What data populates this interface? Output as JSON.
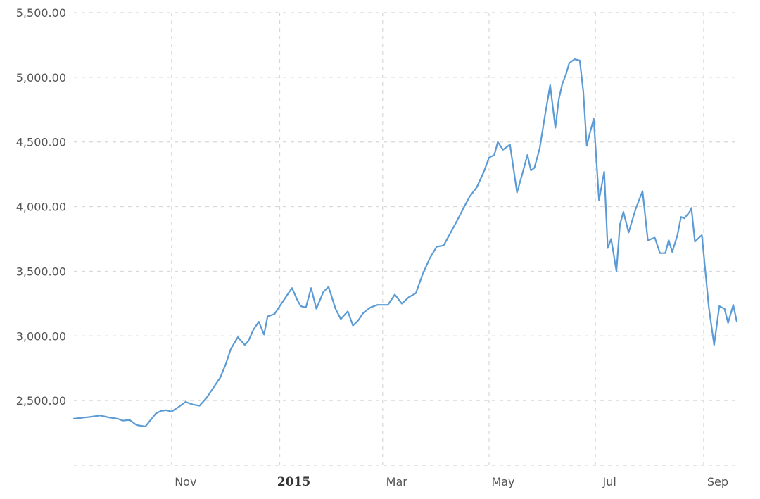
{
  "chart_data": {
    "type": "line",
    "title": "",
    "xlabel": "",
    "ylabel": "",
    "grid": true,
    "legend": "none",
    "ylim": [
      2000,
      5500
    ],
    "y_ticks": [
      2500,
      3000,
      3500,
      4000,
      4500,
      5000,
      5500
    ],
    "y_tick_labels": [
      "2,500.00",
      "3,000.00",
      "3,500.00",
      "4,000.00",
      "4,500.00",
      "5,000.00",
      "5,500.00"
    ],
    "xlim": [
      "2014-09-05",
      "2015-09-20"
    ],
    "x_ticks": [
      "2014-10-31",
      "2015-01-01",
      "2015-03-01",
      "2015-05-01",
      "2015-07-01",
      "2015-09-01"
    ],
    "x_tick_labels": [
      {
        "text": "Nov",
        "bold": false
      },
      {
        "text": "2015",
        "bold": true
      },
      {
        "text": "Mar",
        "bold": false
      },
      {
        "text": "May",
        "bold": false
      },
      {
        "text": "Jul",
        "bold": false
      },
      {
        "text": "Sep",
        "bold": false
      }
    ],
    "colors": {
      "line": "#5b9bd5",
      "grid": "#d8d8d8"
    },
    "series": [
      {
        "x": [
          "2014-09-05",
          "2014-09-15",
          "2014-09-20",
          "2014-09-25",
          "2014-09-30",
          "2014-10-03",
          "2014-10-07",
          "2014-10-11",
          "2014-10-16",
          "2014-10-22",
          "2014-10-25",
          "2014-10-28",
          "2014-10-31",
          "2014-11-04",
          "2014-11-08",
          "2014-11-12",
          "2014-11-16",
          "2014-11-20",
          "2014-11-24",
          "2014-11-28",
          "2014-12-01",
          "2014-12-04",
          "2014-12-08",
          "2014-12-12",
          "2014-12-14",
          "2014-12-17",
          "2014-12-20",
          "2014-12-23",
          "2014-12-25",
          "2014-12-29",
          "2015-01-01",
          "2015-01-05",
          "2015-01-08",
          "2015-01-11",
          "2015-01-13",
          "2015-01-16",
          "2015-01-19",
          "2015-01-22",
          "2015-01-26",
          "2015-01-29",
          "2015-02-02",
          "2015-02-05",
          "2015-02-09",
          "2015-02-12",
          "2015-02-15",
          "2015-02-18",
          "2015-02-22",
          "2015-02-26",
          "2015-03-01",
          "2015-03-04",
          "2015-03-08",
          "2015-03-12",
          "2015-03-16",
          "2015-03-20",
          "2015-03-24",
          "2015-03-28",
          "2015-04-01",
          "2015-04-05",
          "2015-04-09",
          "2015-04-13",
          "2015-04-16",
          "2015-04-20",
          "2015-04-24",
          "2015-04-28",
          "2015-05-01",
          "2015-05-04",
          "2015-05-06",
          "2015-05-09",
          "2015-05-13",
          "2015-05-17",
          "2015-05-20",
          "2015-05-23",
          "2015-05-25",
          "2015-05-27",
          "2015-05-30",
          "2015-06-02",
          "2015-06-05",
          "2015-06-08",
          "2015-06-10",
          "2015-06-12",
          "2015-06-14",
          "2015-06-16",
          "2015-06-19",
          "2015-06-22",
          "2015-06-24",
          "2015-06-26",
          "2015-06-28",
          "2015-06-30",
          "2015-07-03",
          "2015-07-06",
          "2015-07-08",
          "2015-07-10",
          "2015-07-13",
          "2015-07-15",
          "2015-07-17",
          "2015-07-20",
          "2015-07-24",
          "2015-07-28",
          "2015-07-31",
          "2015-08-04",
          "2015-08-07",
          "2015-08-10",
          "2015-08-12",
          "2015-08-14",
          "2015-08-17",
          "2015-08-19",
          "2015-08-21",
          "2015-08-24",
          "2015-08-25",
          "2015-08-27",
          "2015-08-31",
          "2015-09-04",
          "2015-09-07",
          "2015-09-10",
          "2015-09-13",
          "2015-09-15",
          "2015-09-18",
          "2015-09-20"
        ],
        "values": [
          2360,
          2375,
          2385,
          2370,
          2360,
          2345,
          2350,
          2310,
          2300,
          2400,
          2420,
          2425,
          2415,
          2450,
          2490,
          2470,
          2460,
          2520,
          2600,
          2680,
          2780,
          2900,
          2990,
          2930,
          2960,
          3050,
          3110,
          3010,
          3150,
          3170,
          3230,
          3310,
          3370,
          3280,
          3230,
          3220,
          3370,
          3210,
          3340,
          3380,
          3210,
          3130,
          3190,
          3080,
          3120,
          3180,
          3220,
          3240,
          3240,
          3240,
          3320,
          3250,
          3300,
          3330,
          3480,
          3600,
          3690,
          3700,
          3800,
          3900,
          3980,
          4080,
          4150,
          4270,
          4380,
          4400,
          4500,
          4440,
          4480,
          4110,
          4250,
          4400,
          4280,
          4300,
          4450,
          4700,
          4940,
          4610,
          4830,
          4950,
          5020,
          5110,
          5140,
          5130,
          4890,
          4470,
          4580,
          4680,
          4050,
          4270,
          3680,
          3750,
          3500,
          3860,
          3960,
          3800,
          3980,
          4120,
          3740,
          3760,
          3640,
          3640,
          3740,
          3650,
          3780,
          3920,
          3910,
          3960,
          3990,
          3730,
          3780,
          3220,
          2930,
          3230,
          3210,
          3100,
          3240,
          3110
        ]
      }
    ]
  }
}
